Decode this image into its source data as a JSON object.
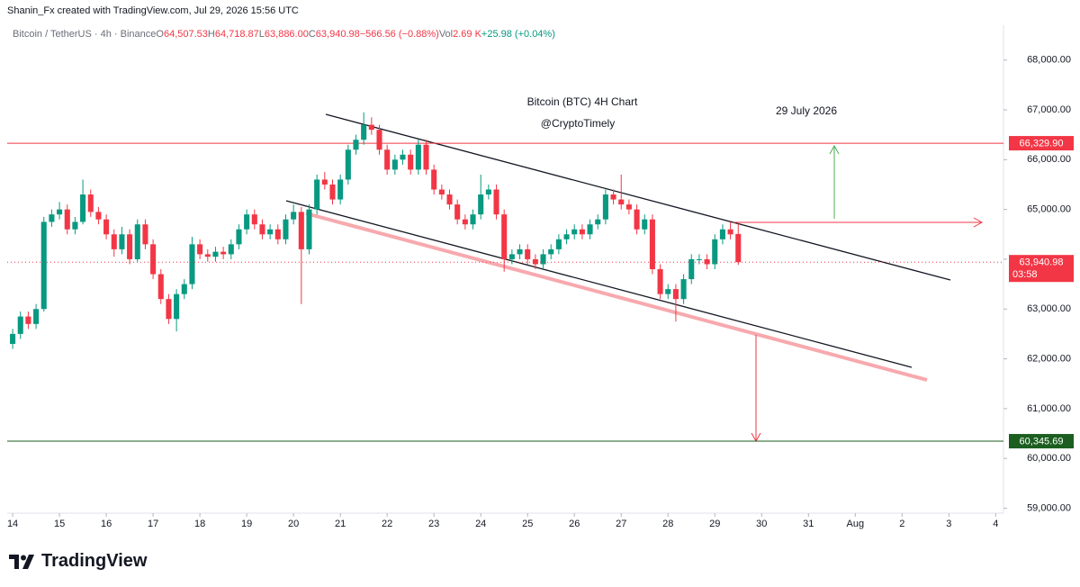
{
  "chart_data": {
    "type": "candlestick",
    "attribution": "Shanin_Fx created with TradingView.com, Jul 29, 2026 15:56 UTC",
    "symbol": "Bitcoin / TetherUS · 4h · Binance",
    "legend_items": [
      {
        "key": "O",
        "text": "64,507.53"
      },
      {
        "key": "H",
        "text": "64,718.87"
      },
      {
        "key": "L",
        "text": "63,886.00"
      },
      {
        "key": "C",
        "text": "63,940.98"
      },
      {
        "key": "",
        "text": "−566.56 (−0.88%)"
      },
      {
        "key": "Vol",
        "text": "2.69 K"
      }
    ],
    "volume_change": "+25.98 (+0.04%)",
    "title": "Bitcoin (BTC) 4H Chart",
    "subtitle": "@CryptoTimely",
    "date_note": "29 July 2026",
    "brand": "TradingView",
    "up_color": "#089981",
    "down_color": "#f23645",
    "ylim": [
      58900,
      68700
    ],
    "yticks": [
      {
        "value": 59000,
        "label": "59,000.00"
      },
      {
        "value": 60000,
        "label": "60,000.00"
      },
      {
        "value": 61000,
        "label": "61,000.00"
      },
      {
        "value": 62000,
        "label": "62,000.00"
      },
      {
        "value": 63000,
        "label": "63,000.00"
      },
      {
        "value": 64000,
        "label": "64,000.00"
      },
      {
        "value": 65000,
        "label": "65,000.00"
      },
      {
        "value": 66000,
        "label": "66,000.00"
      },
      {
        "value": 67000,
        "label": "67,000.00"
      },
      {
        "value": 68000,
        "label": "68,000.00"
      }
    ],
    "xlim": [
      -0.7,
      127
    ],
    "xticks": [
      {
        "value": 0,
        "label": "14"
      },
      {
        "value": 6,
        "label": "15"
      },
      {
        "value": 12,
        "label": "16"
      },
      {
        "value": 18,
        "label": "17"
      },
      {
        "value": 24,
        "label": "18"
      },
      {
        "value": 30,
        "label": "19"
      },
      {
        "value": 36,
        "label": "20"
      },
      {
        "value": 42,
        "label": "21"
      },
      {
        "value": 48,
        "label": "22"
      },
      {
        "value": 54,
        "label": "23"
      },
      {
        "value": 60,
        "label": "24"
      },
      {
        "value": 66,
        "label": "25"
      },
      {
        "value": 72,
        "label": "26"
      },
      {
        "value": 78,
        "label": "27"
      },
      {
        "value": 84,
        "label": "28"
      },
      {
        "value": 90,
        "label": "29"
      },
      {
        "value": 96,
        "label": "30"
      },
      {
        "value": 102,
        "label": "31"
      },
      {
        "value": 108,
        "label": "Aug"
      },
      {
        "value": 114,
        "label": "2"
      },
      {
        "value": 120,
        "label": "3"
      },
      {
        "value": 126,
        "label": "4"
      }
    ],
    "levels": [
      {
        "value": 66329.9,
        "label": "66,329.90",
        "color": "#f23645"
      },
      {
        "value": 60345.69,
        "label": "60,345.69",
        "color": "#1b5e20"
      }
    ],
    "last_price": {
      "value": 63940.98,
      "label": "63,940.98",
      "countdown": "03:58",
      "color": "#f23645"
    },
    "candles": {
      "open": [
        62300,
        62500,
        62850,
        62700,
        63000,
        64750,
        64900,
        65000,
        64600,
        64750,
        65300,
        64950,
        64800,
        64500,
        64200,
        64500,
        64000,
        64700,
        64300,
        63700,
        63200,
        62800,
        63300,
        63500,
        64300,
        64100,
        64050,
        64150,
        64100,
        64300,
        64600,
        64900,
        64700,
        64500,
        64600,
        64400,
        64800,
        64950,
        64200,
        65000,
        65600,
        65500,
        65200,
        65600,
        66200,
        66400,
        66700,
        66600,
        66200,
        65800,
        66000,
        66100,
        65800,
        66300,
        65800,
        65400,
        65300,
        65100,
        64800,
        64700,
        64900,
        65300,
        65400,
        64900,
        64000,
        64100,
        64200,
        64000,
        63900,
        64100,
        64200,
        64400,
        64500,
        64600,
        64500,
        64700,
        64800,
        65300,
        65200,
        65100,
        65000,
        64600,
        64800,
        63800,
        63300,
        63400,
        63200,
        63600,
        64000,
        64000,
        63900,
        64400,
        64600,
        64507.53
      ],
      "high": [
        62600,
        62950,
        62950,
        63100,
        64850,
        65000,
        65150,
        65100,
        64850,
        65600,
        65400,
        65050,
        64900,
        64600,
        64650,
        64600,
        64800,
        64800,
        64400,
        63800,
        63300,
        63400,
        63600,
        64450,
        64400,
        64200,
        64250,
        64250,
        64400,
        64700,
        65000,
        65000,
        64800,
        64700,
        64700,
        64900,
        65100,
        65050,
        65100,
        65700,
        65750,
        65600,
        65700,
        66300,
        66500,
        66950,
        66850,
        66700,
        66300,
        66100,
        66200,
        66200,
        66400,
        66400,
        65900,
        65500,
        65400,
        65200,
        64900,
        65000,
        65700,
        65500,
        65500,
        65000,
        64200,
        64300,
        64300,
        64100,
        64200,
        64300,
        64500,
        64600,
        64700,
        64700,
        64800,
        64900,
        65400,
        65400,
        65700,
        65200,
        65100,
        64900,
        64900,
        63900,
        63500,
        63500,
        63700,
        64100,
        64100,
        64100,
        64500,
        64700,
        64750,
        64718.87
      ],
      "low": [
        62200,
        62400,
        62600,
        62600,
        62950,
        64650,
        64800,
        64500,
        64500,
        64700,
        64850,
        64700,
        64400,
        64050,
        64100,
        63900,
        63950,
        64200,
        63600,
        63100,
        62700,
        62550,
        63200,
        63400,
        64000,
        63950,
        63950,
        64000,
        64000,
        64200,
        64500,
        64600,
        64400,
        64400,
        64300,
        64300,
        64700,
        63100,
        64100,
        64900,
        65400,
        65100,
        65100,
        65500,
        66100,
        66300,
        66500,
        66100,
        65700,
        65700,
        65900,
        65700,
        65700,
        65700,
        65300,
        65200,
        65000,
        64700,
        64600,
        64600,
        64800,
        65200,
        64800,
        63750,
        63900,
        64000,
        63900,
        63800,
        63800,
        64000,
        64100,
        64300,
        64400,
        64400,
        64400,
        64600,
        64700,
        65100,
        65000,
        64900,
        64500,
        64500,
        63700,
        63200,
        63200,
        62750,
        63100,
        63500,
        63900,
        63800,
        63800,
        64300,
        64400,
        63886
      ],
      "close": [
        62500,
        62850,
        62700,
        63000,
        64750,
        64900,
        65000,
        64600,
        64750,
        65300,
        64950,
        64800,
        64500,
        64200,
        64500,
        64000,
        64700,
        64300,
        63700,
        63200,
        62800,
        63300,
        63500,
        64300,
        64100,
        64050,
        64150,
        64100,
        64300,
        64600,
        64900,
        64700,
        64500,
        64600,
        64400,
        64800,
        64950,
        64200,
        65000,
        65600,
        65500,
        65200,
        65600,
        66200,
        66400,
        66700,
        66600,
        66200,
        65800,
        66000,
        66100,
        65800,
        66300,
        65800,
        65400,
        65300,
        65100,
        64800,
        64700,
        64900,
        65300,
        65400,
        64900,
        64000,
        64100,
        64200,
        64000,
        63900,
        64100,
        64200,
        64400,
        64500,
        64600,
        64500,
        64700,
        64800,
        65300,
        65200,
        65100,
        65000,
        64600,
        64800,
        63800,
        63300,
        63400,
        63200,
        63600,
        64000,
        64000,
        63900,
        64400,
        64600,
        64500,
        63940.98
      ]
    }
  }
}
